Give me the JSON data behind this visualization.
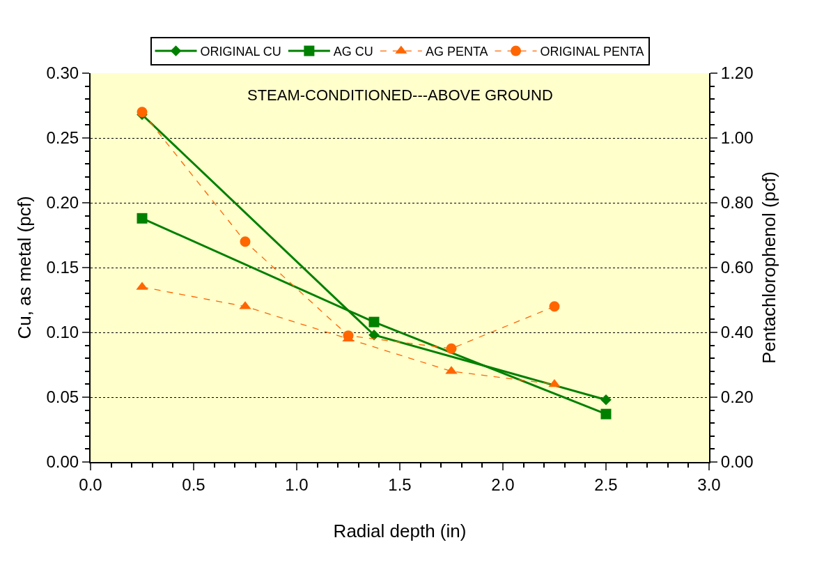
{
  "chart_data": {
    "type": "line",
    "xlabel": "Radial depth (in)",
    "ylabel": "Cu, as metal (pcf)",
    "y2label": "Pentachlorophenol (pcf)",
    "annotations": [
      "STEAM-CONDITIONED---ABOVE GROUND"
    ],
    "xlim": [
      0,
      3.0
    ],
    "xticks": [
      {
        "value": 0,
        "label": "0.0"
      },
      0.5,
      {
        "value": 1,
        "label": "1.0"
      },
      1.5,
      {
        "value": 2,
        "label": "2.0"
      },
      2.5,
      {
        "value": 3,
        "label": "3.0"
      }
    ],
    "ylim": [
      0,
      0.3
    ],
    "yticks": [
      {
        "value": 0,
        "label": "0.00"
      },
      0.05,
      {
        "value": 0.1,
        "label": "0.10"
      },
      0.15,
      {
        "value": 0.2,
        "label": "0.20"
      },
      0.25,
      {
        "value": 0.3,
        "label": "0.30"
      }
    ],
    "y2lim": [
      0,
      1.2
    ],
    "y2ticks": [
      {
        "value": 0,
        "label": "0.00"
      },
      {
        "value": 0.2,
        "label": "0.20"
      },
      {
        "value": 0.4,
        "label": "0.40"
      },
      {
        "value": 0.6,
        "label": "0.60"
      },
      {
        "value": 0.8,
        "label": "0.80"
      },
      {
        "value": 1.0,
        "label": "1.00"
      },
      {
        "value": 1.2,
        "label": "1.20"
      }
    ],
    "grid": "y",
    "legend": "top",
    "series": [
      {
        "name": "ORIGINAL CU",
        "color": "#008000",
        "marker": "diamond",
        "line_style": "solid",
        "x": [
          0.25,
          1.375,
          2.5
        ],
        "values": [
          0.268,
          0.098,
          0.048
        ]
      },
      {
        "name": "AG CU",
        "color": "#008000",
        "marker": "square",
        "line_style": "solid",
        "x": [
          0.25,
          1.375,
          2.5
        ],
        "values": [
          0.188,
          0.108,
          0.037
        ]
      },
      {
        "name": "AG PENTA",
        "color": "#ff6600",
        "marker": "triangle",
        "line_style": "dashed",
        "axis": "y2",
        "x": [
          0.25,
          0.75,
          1.25,
          1.75,
          2.25
        ],
        "values": [
          0.54,
          0.48,
          0.38,
          0.28,
          0.24
        ]
      },
      {
        "name": "ORIGINAL PENTA",
        "color": "#ff6600",
        "marker": "circle",
        "line_style": "dashed",
        "axis": "y2",
        "x": [
          0.25,
          0.75,
          1.25,
          1.75,
          2.25
        ],
        "values": [
          1.08,
          0.68,
          0.39,
          0.35,
          0.48
        ]
      }
    ]
  }
}
